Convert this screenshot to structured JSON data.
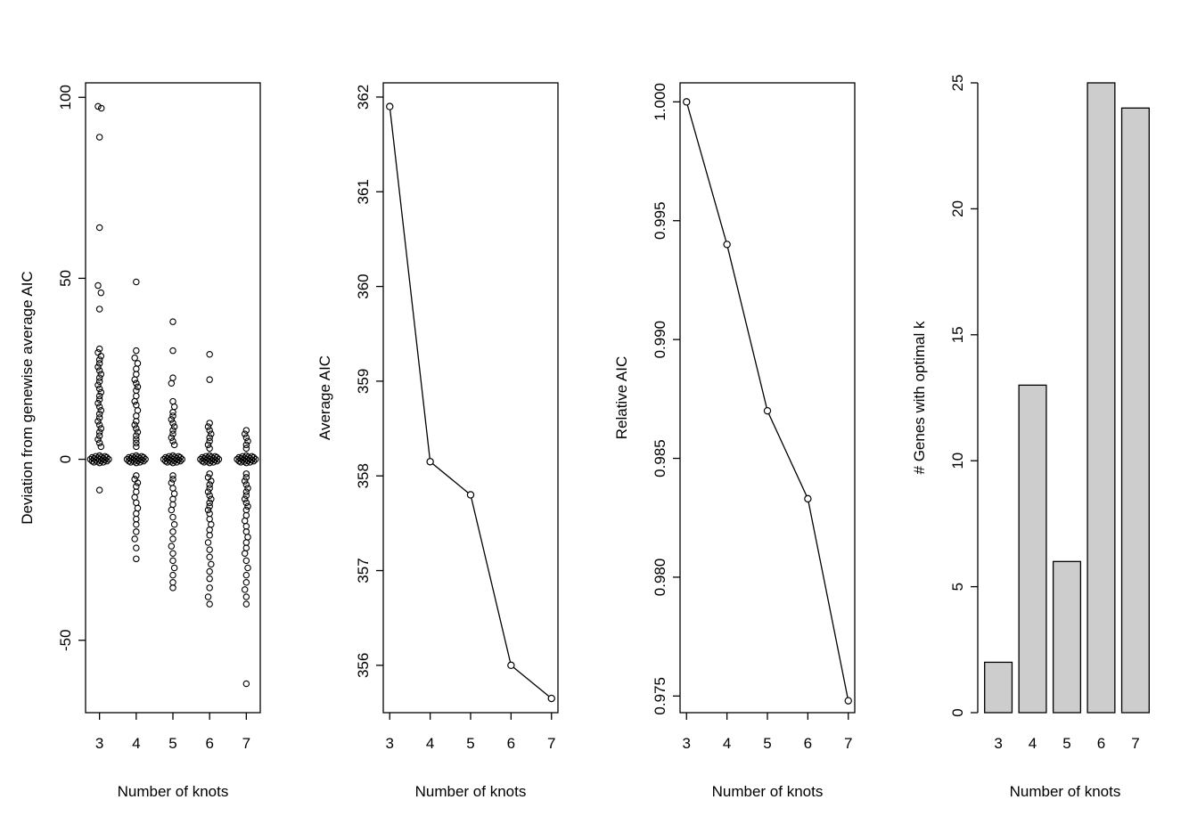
{
  "figure": {
    "background": "#ffffff",
    "foreground": "#000000"
  },
  "chart_data": [
    {
      "type": "scatter",
      "title": "",
      "xlabel": "Number of knots",
      "ylabel": "Deviation from genewise average AIC",
      "xticks": [
        3,
        4,
        5,
        6,
        7
      ],
      "xtick_labels": [
        "3",
        "4",
        "5",
        "6",
        "7"
      ],
      "yticks": [
        -50,
        0,
        50,
        100
      ],
      "ytick_labels": [
        "-50",
        "0",
        "50",
        "100"
      ],
      "xlim": [
        2.62,
        7.38
      ],
      "ylim": [
        -70,
        104
      ],
      "grid": false,
      "points": [
        [
          2.96,
          97.5
        ],
        [
          3.05,
          97
        ],
        [
          3,
          89
        ],
        [
          3,
          64
        ],
        [
          2.96,
          48
        ],
        [
          3.04,
          46
        ],
        [
          3,
          41.5
        ],
        [
          3,
          30.5
        ],
        [
          2.96,
          29.5
        ],
        [
          3.04,
          28.5
        ],
        [
          3,
          27.5
        ],
        [
          3,
          26.5
        ],
        [
          2.96,
          25.5
        ],
        [
          3,
          24.5
        ],
        [
          3.04,
          23.5
        ],
        [
          3,
          22.5
        ],
        [
          3,
          21.5
        ],
        [
          2.96,
          20.5
        ],
        [
          3,
          19.5
        ],
        [
          3.04,
          18.5
        ],
        [
          3,
          17.5
        ],
        [
          3,
          16.5
        ],
        [
          2.96,
          15.5
        ],
        [
          3,
          14.5
        ],
        [
          3.04,
          13.5
        ],
        [
          3,
          12.5
        ],
        [
          3,
          11.5
        ],
        [
          2.96,
          10.5
        ],
        [
          3,
          9.5
        ],
        [
          3.04,
          8.5
        ],
        [
          3,
          7.5
        ],
        [
          3,
          6.5
        ],
        [
          2.96,
          5.5
        ],
        [
          3,
          4.5
        ],
        [
          3.04,
          3.5
        ],
        [
          3,
          -8.5
        ],
        [
          2.75,
          0
        ],
        [
          2.8,
          0.5
        ],
        [
          2.8,
          -0.5
        ],
        [
          2.85,
          0.2
        ],
        [
          2.85,
          -0.8
        ],
        [
          2.9,
          0.8
        ],
        [
          2.9,
          -0.3
        ],
        [
          2.95,
          0.4
        ],
        [
          2.95,
          -0.6
        ],
        [
          3,
          1
        ],
        [
          3,
          0
        ],
        [
          3,
          -1
        ],
        [
          3.05,
          0.6
        ],
        [
          3.05,
          -0.4
        ],
        [
          3.1,
          0.3
        ],
        [
          3.1,
          -0.8
        ],
        [
          3.15,
          0.8
        ],
        [
          3.15,
          -0.2
        ],
        [
          3.2,
          0.5
        ],
        [
          3.2,
          -0.5
        ],
        [
          3.25,
          0
        ],
        [
          4,
          49
        ],
        [
          4,
          30
        ],
        [
          3.96,
          28
        ],
        [
          4.04,
          26.5
        ],
        [
          4,
          25
        ],
        [
          4,
          23.5
        ],
        [
          3.96,
          22
        ],
        [
          4,
          21
        ],
        [
          4.04,
          20
        ],
        [
          4,
          19
        ],
        [
          4,
          17.5
        ],
        [
          3.96,
          16
        ],
        [
          4,
          15
        ],
        [
          4.04,
          13.5
        ],
        [
          4,
          12
        ],
        [
          4,
          10.5
        ],
        [
          3.96,
          9.5
        ],
        [
          4,
          8.5
        ],
        [
          4.04,
          7.5
        ],
        [
          4,
          6.5
        ],
        [
          4,
          5.5
        ],
        [
          4,
          4.5
        ],
        [
          4,
          3.5
        ],
        [
          4,
          -4.5
        ],
        [
          3.96,
          -5.5
        ],
        [
          4.04,
          -6.5
        ],
        [
          4,
          -7.5
        ],
        [
          4,
          -9
        ],
        [
          3.96,
          -10.5
        ],
        [
          4,
          -12
        ],
        [
          4.04,
          -13.5
        ],
        [
          4,
          -15
        ],
        [
          4,
          -16.5
        ],
        [
          4,
          -18
        ],
        [
          4,
          -20
        ],
        [
          3.96,
          -22
        ],
        [
          4,
          -24.5
        ],
        [
          4,
          -27.5
        ],
        [
          3.75,
          0
        ],
        [
          3.8,
          0.5
        ],
        [
          3.8,
          -0.5
        ],
        [
          3.85,
          0.2
        ],
        [
          3.85,
          -0.8
        ],
        [
          3.9,
          0.8
        ],
        [
          3.9,
          -0.3
        ],
        [
          3.95,
          0.4
        ],
        [
          3.95,
          -0.6
        ],
        [
          4,
          1
        ],
        [
          4,
          0
        ],
        [
          4,
          -1
        ],
        [
          4.05,
          0.6
        ],
        [
          4.05,
          -0.4
        ],
        [
          4.1,
          0.3
        ],
        [
          4.1,
          -0.8
        ],
        [
          4.15,
          0.8
        ],
        [
          4.15,
          -0.2
        ],
        [
          4.2,
          0.5
        ],
        [
          4.2,
          -0.5
        ],
        [
          4.25,
          0
        ],
        [
          5,
          38
        ],
        [
          5,
          30
        ],
        [
          5,
          22.5
        ],
        [
          4.96,
          21
        ],
        [
          5,
          16
        ],
        [
          5.04,
          14.5
        ],
        [
          5,
          13
        ],
        [
          5,
          12
        ],
        [
          4.96,
          11
        ],
        [
          5,
          10
        ],
        [
          5.04,
          9
        ],
        [
          5,
          8
        ],
        [
          5,
          7
        ],
        [
          4.96,
          6
        ],
        [
          5,
          5
        ],
        [
          5.04,
          4
        ],
        [
          5,
          -4.5
        ],
        [
          5,
          -5.5
        ],
        [
          4.96,
          -6.5
        ],
        [
          5,
          -8
        ],
        [
          5.04,
          -9.5
        ],
        [
          5,
          -11
        ],
        [
          5,
          -12.5
        ],
        [
          4.96,
          -14
        ],
        [
          5,
          -16
        ],
        [
          5.04,
          -18
        ],
        [
          5,
          -20
        ],
        [
          5,
          -22
        ],
        [
          4.96,
          -24
        ],
        [
          5,
          -26
        ],
        [
          5,
          -28
        ],
        [
          5.04,
          -30
        ],
        [
          5,
          -32
        ],
        [
          5,
          -34
        ],
        [
          5,
          -35.5
        ],
        [
          4.75,
          0
        ],
        [
          4.8,
          0.5
        ],
        [
          4.8,
          -0.5
        ],
        [
          4.85,
          0.2
        ],
        [
          4.85,
          -0.8
        ],
        [
          4.9,
          0.8
        ],
        [
          4.9,
          -0.3
        ],
        [
          4.95,
          0.4
        ],
        [
          4.95,
          -0.6
        ],
        [
          5,
          1
        ],
        [
          5,
          0
        ],
        [
          5,
          -1
        ],
        [
          5.05,
          0.6
        ],
        [
          5.05,
          -0.4
        ],
        [
          5.1,
          0.3
        ],
        [
          5.1,
          -0.8
        ],
        [
          5.15,
          0.8
        ],
        [
          5.15,
          -0.2
        ],
        [
          5.2,
          0.5
        ],
        [
          5.2,
          -0.5
        ],
        [
          5.25,
          0
        ],
        [
          6,
          29
        ],
        [
          6,
          22
        ],
        [
          6,
          10
        ],
        [
          5.96,
          9
        ],
        [
          6,
          8
        ],
        [
          6.04,
          7
        ],
        [
          6,
          6
        ],
        [
          6,
          5
        ],
        [
          5.96,
          4
        ],
        [
          6,
          3
        ],
        [
          6,
          -4
        ],
        [
          5.96,
          -5
        ],
        [
          6.04,
          -6
        ],
        [
          6,
          -7
        ],
        [
          6,
          -8
        ],
        [
          5.96,
          -9
        ],
        [
          6,
          -10
        ],
        [
          6.04,
          -11
        ],
        [
          6,
          -12
        ],
        [
          6,
          -13
        ],
        [
          5.96,
          -14
        ],
        [
          6,
          -15
        ],
        [
          6,
          -16.5
        ],
        [
          6.04,
          -18
        ],
        [
          6,
          -19.5
        ],
        [
          6,
          -21
        ],
        [
          5.96,
          -23
        ],
        [
          6,
          -25
        ],
        [
          6,
          -27
        ],
        [
          6.04,
          -29
        ],
        [
          6,
          -31
        ],
        [
          6,
          -33
        ],
        [
          6,
          -35.5
        ],
        [
          5.96,
          -38
        ],
        [
          6,
          -40
        ],
        [
          5.75,
          0
        ],
        [
          5.8,
          0.5
        ],
        [
          5.8,
          -0.5
        ],
        [
          5.85,
          0.2
        ],
        [
          5.85,
          -0.8
        ],
        [
          5.9,
          0.8
        ],
        [
          5.9,
          -0.3
        ],
        [
          5.95,
          0.4
        ],
        [
          5.95,
          -0.6
        ],
        [
          6,
          1
        ],
        [
          6,
          0
        ],
        [
          6,
          -1
        ],
        [
          6.05,
          0.6
        ],
        [
          6.05,
          -0.4
        ],
        [
          6.1,
          0.3
        ],
        [
          6.1,
          -0.8
        ],
        [
          6.15,
          0.8
        ],
        [
          6.15,
          -0.2
        ],
        [
          6.2,
          0.5
        ],
        [
          6.2,
          -0.5
        ],
        [
          6.25,
          0
        ],
        [
          7,
          8
        ],
        [
          6.96,
          7
        ],
        [
          7,
          6
        ],
        [
          7.04,
          5
        ],
        [
          7,
          4
        ],
        [
          7,
          3
        ],
        [
          7,
          -4
        ],
        [
          7,
          -5
        ],
        [
          6.96,
          -6
        ],
        [
          7,
          -7
        ],
        [
          7.04,
          -8
        ],
        [
          7,
          -9
        ],
        [
          7,
          -10
        ],
        [
          6.96,
          -11
        ],
        [
          7,
          -12
        ],
        [
          7.04,
          -13
        ],
        [
          7,
          -14
        ],
        [
          7,
          -15.5
        ],
        [
          6.96,
          -17
        ],
        [
          7,
          -18.5
        ],
        [
          7,
          -20
        ],
        [
          7.04,
          -21.5
        ],
        [
          7,
          -23
        ],
        [
          7,
          -24.5
        ],
        [
          6.96,
          -26
        ],
        [
          7,
          -28
        ],
        [
          7.04,
          -30
        ],
        [
          7,
          -32
        ],
        [
          7,
          -34
        ],
        [
          6.96,
          -36
        ],
        [
          7,
          -38
        ],
        [
          7,
          -40
        ],
        [
          7,
          -62
        ],
        [
          6.75,
          0
        ],
        [
          6.8,
          0.5
        ],
        [
          6.8,
          -0.5
        ],
        [
          6.85,
          0.2
        ],
        [
          6.85,
          -0.8
        ],
        [
          6.9,
          0.8
        ],
        [
          6.9,
          -0.3
        ],
        [
          6.95,
          0.4
        ],
        [
          6.95,
          -0.6
        ],
        [
          7,
          1
        ],
        [
          7,
          0
        ],
        [
          7,
          -1
        ],
        [
          7.05,
          0.6
        ],
        [
          7.05,
          -0.4
        ],
        [
          7.1,
          0.3
        ],
        [
          7.1,
          -0.8
        ],
        [
          7.15,
          0.8
        ],
        [
          7.15,
          -0.2
        ],
        [
          7.2,
          0.5
        ],
        [
          7.2,
          -0.5
        ],
        [
          7.25,
          0
        ]
      ]
    },
    {
      "type": "line",
      "title": "",
      "xlabel": "Number of knots",
      "ylabel": "Average AIC",
      "xticks": [
        3,
        4,
        5,
        6,
        7
      ],
      "xtick_labels": [
        "3",
        "4",
        "5",
        "6",
        "7"
      ],
      "yticks": [
        356,
        357,
        358,
        359,
        360,
        361,
        362
      ],
      "ytick_labels": [
        "356",
        "357",
        "358",
        "359",
        "360",
        "361",
        "362"
      ],
      "xlim": [
        2.84,
        7.16
      ],
      "ylim": [
        355.5,
        362.15
      ],
      "grid": false,
      "x": [
        3,
        4,
        5,
        6,
        7
      ],
      "y": [
        361.9,
        358.15,
        357.8,
        356.0,
        355.65
      ]
    },
    {
      "type": "line",
      "title": "",
      "xlabel": "Number of knots",
      "ylabel": "Relative AIC",
      "xticks": [
        3,
        4,
        5,
        6,
        7
      ],
      "xtick_labels": [
        "3",
        "4",
        "5",
        "6",
        "7"
      ],
      "yticks": [
        0.975,
        0.98,
        0.985,
        0.99,
        0.995,
        1.0
      ],
      "ytick_labels": [
        "0.975",
        "0.980",
        "0.985",
        "0.990",
        "0.995",
        "1.000"
      ],
      "xlim": [
        2.84,
        7.16
      ],
      "ylim": [
        0.9743,
        1.0008
      ],
      "grid": false,
      "x": [
        3,
        4,
        5,
        6,
        7
      ],
      "y": [
        1.0,
        0.994,
        0.987,
        0.9833,
        0.9748
      ]
    },
    {
      "type": "bar",
      "title": "",
      "xlabel": "Number of knots",
      "ylabel": "# Genes with optimal k",
      "categories": [
        "3",
        "4",
        "5",
        "6",
        "7"
      ],
      "values": [
        2,
        13,
        6,
        25,
        24
      ],
      "yticks": [
        0,
        5,
        10,
        15,
        20,
        25
      ],
      "ytick_labels": [
        "0",
        "5",
        "10",
        "15",
        "20",
        "25"
      ],
      "ylim": [
        0,
        25
      ],
      "grid": false,
      "bar_fill": "#cdcdcd",
      "bar_stroke": "#000000"
    }
  ]
}
